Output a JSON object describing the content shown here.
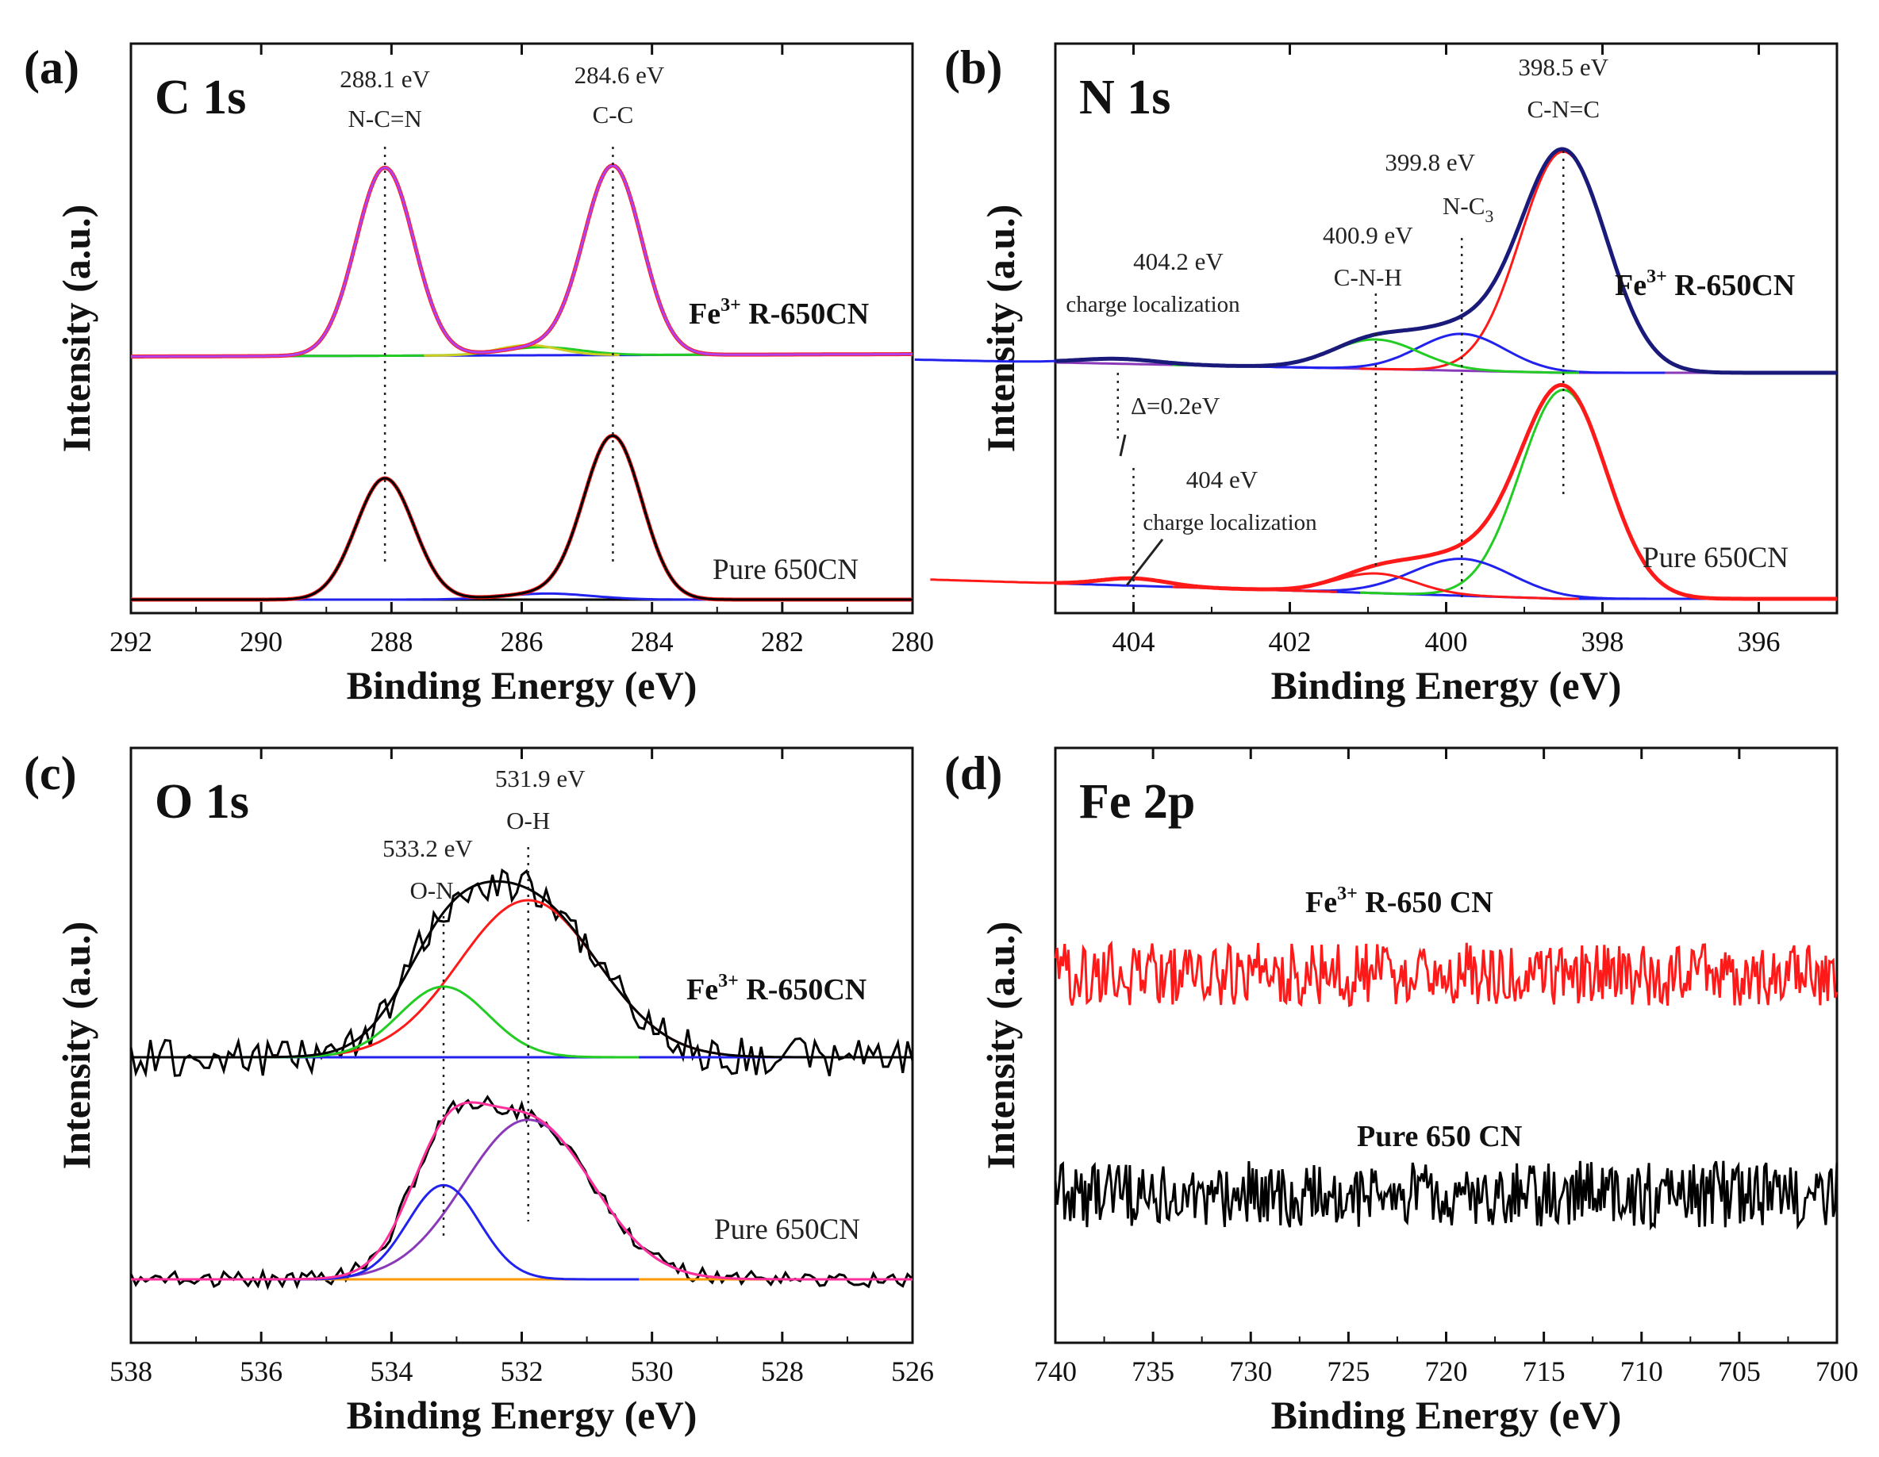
{
  "figure": {
    "panels": [
      {
        "letter": "(a)",
        "element": "C 1s",
        "xlabel": "Binding Energy (eV)",
        "ylabel": "Intensity (a.u.)",
        "ticks": [
          "292",
          "290",
          "288",
          "286",
          "284",
          "282",
          "280"
        ],
        "peaks": [
          {
            "energy": "288.1 eV",
            "assign": "N-C=N"
          },
          {
            "energy": "284.6 eV",
            "assign": "C-C"
          }
        ],
        "samples": {
          "top": "R-650CN",
          "bottom": "Pure 650CN"
        },
        "notes": []
      },
      {
        "letter": "(b)",
        "element": "N 1s",
        "xlabel": "Binding Energy (eV)",
        "ylabel": "Intensity (a.u.)",
        "ticks": [
          "404",
          "402",
          "400",
          "398",
          "396"
        ],
        "peaks": [
          {
            "energy": "398.5 eV",
            "assign": "C-N=C"
          },
          {
            "energy": "399.8 eV",
            "assign": "N-C"
          },
          {
            "energy": "400.9 eV",
            "assign": "C-N-H"
          },
          {
            "energy": "404.2 eV",
            "assign": "charge localization"
          },
          {
            "energy": "404 eV",
            "assign": "charge localization"
          }
        ],
        "samples": {
          "top": "R-650CN",
          "bottom": "Pure 650CN"
        },
        "notes": [
          "Δ=0.2eV"
        ]
      },
      {
        "letter": "(c)",
        "element": "O 1s",
        "xlabel": "Binding Energy (eV)",
        "ylabel": "Intensity (a.u.)",
        "ticks": [
          "538",
          "536",
          "534",
          "532",
          "530",
          "528",
          "526"
        ],
        "peaks": [
          {
            "energy": "531.9 eV",
            "assign": "O-H"
          },
          {
            "energy": "533.2 eV",
            "assign": "O-N"
          }
        ],
        "samples": {
          "top": "R-650CN",
          "bottom": "Pure 650CN"
        },
        "notes": []
      },
      {
        "letter": "(d)",
        "element": "Fe 2p",
        "xlabel": "Binding Energy (eV)",
        "ylabel": "Intensity (a.u.)",
        "ticks": [
          "740",
          "735",
          "730",
          "725",
          "720",
          "715",
          "710",
          "705",
          "700"
        ],
        "peaks": [],
        "samples": {
          "top": "R-650 CN",
          "bottom": "Pure 650 CN"
        },
        "notes": []
      }
    ],
    "fe_prefix": "Fe",
    "fe_sup": "3+",
    "subscript_three": "3"
  },
  "colors": {
    "red": "#ff1a1a",
    "blue": "#2222ee",
    "green": "#22cc22",
    "violet": "#b040f0",
    "olive": "#cccc22",
    "navy": "#1a1a7a",
    "purple": "#8a3ab9",
    "magenta": "#ff2e9a",
    "orange": "#ff9900",
    "black": "#000000"
  },
  "chart_data": [
    {
      "type": "line",
      "panel": "(a)",
      "title": "C 1s",
      "xlabel": "Binding Energy (eV)",
      "ylabel": "Intensity (a.u.)",
      "xlim": [
        292,
        280
      ],
      "x_reversed": true,
      "series": [
        {
          "name": "Fe3+ R-650CN",
          "role": "spectrum",
          "offset": 1.0,
          "peaks": [
            {
              "center": 288.1,
              "height": 0.93,
              "fwhm": 1.05
            },
            {
              "center": 284.6,
              "height": 0.93,
              "fwhm": 1.05
            },
            {
              "center": 285.7,
              "height": 0.04,
              "fwhm": 1.4
            }
          ]
        },
        {
          "name": "Pure 650CN",
          "role": "spectrum",
          "offset": 0.0,
          "peaks": [
            {
              "center": 288.1,
              "height": 0.6,
              "fwhm": 1.05
            },
            {
              "center": 284.6,
              "height": 0.8,
              "fwhm": 1.05
            },
            {
              "center": 285.6,
              "height": 0.03,
              "fwhm": 1.6
            }
          ]
        }
      ]
    },
    {
      "type": "line",
      "panel": "(b)",
      "title": "N 1s",
      "xlabel": "Binding Energy (eV)",
      "ylabel": "Intensity (a.u.)",
      "xlim": [
        405,
        395
      ],
      "x_reversed": true,
      "series": [
        {
          "name": "Fe3+ R-650CN",
          "role": "spectrum",
          "offset": 1.0,
          "peaks": [
            {
              "center": 398.5,
              "height": 0.9,
              "fwhm": 1.3
            },
            {
              "center": 399.8,
              "height": 0.15,
              "fwhm": 1.3
            },
            {
              "center": 400.9,
              "height": 0.12,
              "fwhm": 1.3
            },
            {
              "center": 404.2,
              "height": 0.02,
              "fwhm": 1.2
            }
          ]
        },
        {
          "name": "Pure 650CN",
          "role": "spectrum",
          "offset": 0.0,
          "peaks": [
            {
              "center": 398.5,
              "height": 0.85,
              "fwhm": 1.3
            },
            {
              "center": 399.8,
              "height": 0.15,
              "fwhm": 1.5
            },
            {
              "center": 400.9,
              "height": 0.08,
              "fwhm": 1.2
            },
            {
              "center": 404.0,
              "height": 0.03,
              "fwhm": 1.0
            }
          ]
        }
      ]
    },
    {
      "type": "line",
      "panel": "(c)",
      "title": "O 1s",
      "xlabel": "Binding Energy (eV)",
      "ylabel": "Intensity (a.u.)",
      "xlim": [
        538,
        526
      ],
      "x_reversed": true,
      "series": [
        {
          "name": "Fe3+ R-650CN",
          "role": "spectrum",
          "offset": 1.0,
          "peaks": [
            {
              "center": 531.9,
              "height": 0.6,
              "fwhm": 2.5
            },
            {
              "center": 533.2,
              "height": 0.27,
              "fwhm": 1.6
            }
          ]
        },
        {
          "name": "Pure 650CN",
          "role": "spectrum",
          "offset": 0.0,
          "peaks": [
            {
              "center": 531.9,
              "height": 0.61,
              "fwhm": 2.3
            },
            {
              "center": 533.2,
              "height": 0.36,
              "fwhm": 1.3
            }
          ]
        }
      ]
    },
    {
      "type": "line",
      "panel": "(d)",
      "title": "Fe 2p",
      "xlabel": "Binding Energy (eV)",
      "ylabel": "Intensity (a.u.)",
      "xlim": [
        740,
        700
      ],
      "x_reversed": true,
      "series": [
        {
          "name": "Fe3+ R-650 CN",
          "role": "noise",
          "level": 0.62
        },
        {
          "name": "Pure 650 CN",
          "role": "noise",
          "level": 0.25
        }
      ]
    }
  ]
}
